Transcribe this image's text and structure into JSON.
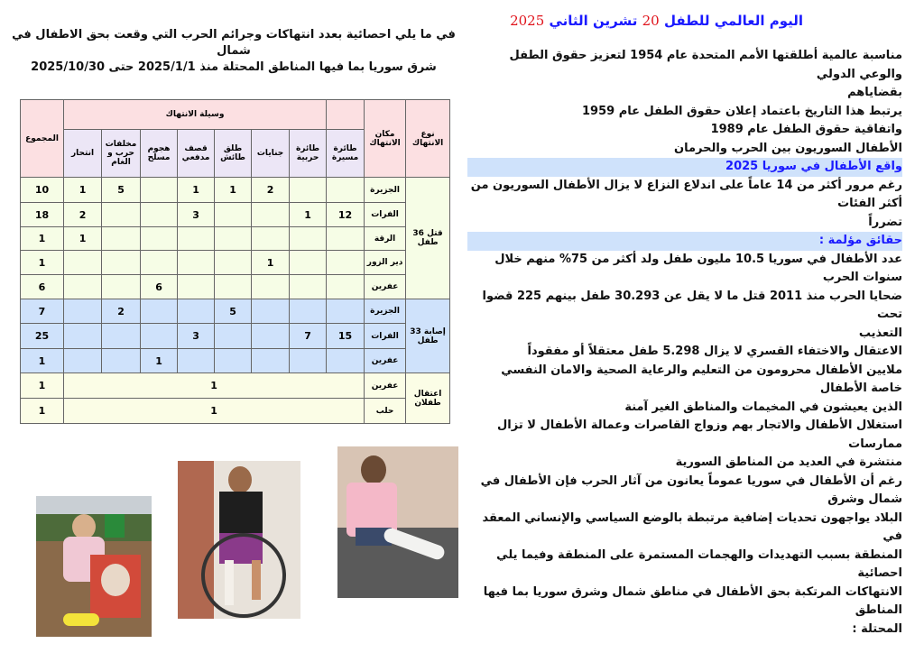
{
  "title": {
    "part1": "اليوم العالمي للطفل",
    "day": "20",
    "part2": "تشرين الثاني",
    "year": "2025"
  },
  "colors": {
    "title_blue": "#1a1aff",
    "title_red": "#e0131b",
    "header_pink": "#fce0e2",
    "killed_green": "#f6fde6",
    "injury_blue": "#cfe2fb",
    "detention_yellow": "#fbfde6"
  },
  "body_lines": [
    {
      "text": "مناسبة عالمية أطلقتها الأمم المتحدة عام 1954 لتعزيز حقوق الطفل والوعي الدولي",
      "color": "black"
    },
    {
      "text": "بقضاياهم",
      "color": "black"
    },
    {
      "text": "يرتبط هذا التاريخ باعتماد إعلان حقوق الطفل عام 1959",
      "color": "black"
    },
    {
      "text": "واتفاقية حقوق الطفل عام 1989",
      "color": "black"
    },
    {
      "text": "الأطفال السوريون بين الحرب والحرمان",
      "color": "black"
    },
    {
      "text": "واقع الأطفال في سوريا 2025",
      "color": "blue"
    },
    {
      "text": "رغم مرور أكثر من 14 عاماً على اندلاع النزاع لا يزال الأطفال السوريون من أكثر الفئات",
      "color": "black"
    },
    {
      "text": "تضرراً",
      "color": "black"
    },
    {
      "text": "حقائق مؤلمة :",
      "color": "blue"
    },
    {
      "text": "عدد الأطفال في سوريا 10.5 مليون طفل ولد أكثر من 75% منهم خلال سنوات الحرب",
      "color": "black"
    },
    {
      "text": "ضحايا الحرب منذ 2011 قتل ما لا يقل عن 30.293 طفل بينهم 225 قضوا تحت",
      "color": "black"
    },
    {
      "text": "التعذيب",
      "color": "black"
    },
    {
      "text": "الاعتقال والاختفاء القسري لا يزال 5.298 طفل معتقلاً أو مفقوداً",
      "color": "black"
    },
    {
      "text": "ملايين الأطفال محرومون من التعليم والرعاية الصحية والامان النفسي خاصة الأطفال",
      "color": "black"
    },
    {
      "text": "الذين يعيشون في المخيمات والمناطق الغير آمنة",
      "color": "black"
    },
    {
      "text": "استغلال الأطفال والاتجار بهم وزواج القاصرات وعمالة الأطفال لا تزال ممارسات",
      "color": "black"
    },
    {
      "text": "منتشرة في العديد من المناطق السورية",
      "color": "black"
    },
    {
      "text": "رغم أن الأطفال في سوريا عموماً يعانون من آثار الحرب فإن الأطفال في شمال وشرق",
      "color": "black"
    },
    {
      "text": "البلاد يواجهون تحديات إضافية مرتبطة بالوضع السياسي والإنساني المعقد في",
      "color": "black"
    },
    {
      "text": "المنطقة بسبب التهديدات والهجمات المستمرة على المنطقة وفيما يلي احصائية",
      "color": "black"
    },
    {
      "text": "الانتهاكات المرتكبة بحق الأطفال في مناطق شمال وشرق سوريا بما فيها المناطق",
      "color": "black"
    },
    {
      "text": "المحتلة :",
      "color": "black"
    }
  ],
  "stats_heading": {
    "line1": "في ما يلي احصائية بعدد انتهاكات وجرائم الحرب التي وقعت بحق الاطفال في شمال",
    "line2": "شرق سوريا بما فيها المناطق المحتلة منذ 2025/1/1 حتى 2025/10/30"
  },
  "table": {
    "headers": {
      "type": "نوع الانتهاك",
      "place": "مكان الانتهاك",
      "means": "وسيلة الانتهاك",
      "total": "المجموع",
      "means_cols": [
        "طائرة مسيرة",
        "طائرة حربية",
        "جنايات",
        "طلق طائش",
        "قصف مدفعي",
        "هجوم مسلح",
        "مخلفات حرب و الغام",
        "انتحار"
      ]
    },
    "groups": [
      {
        "label": "قتل 36 طفل",
        "style": "green",
        "rows": [
          {
            "place": "الجزيرة",
            "values": [
              "",
              "",
              "2",
              "1",
              "1",
              "",
              "5",
              "1"
            ],
            "total": "10"
          },
          {
            "place": "الفرات",
            "values": [
              "12",
              "1",
              "",
              "",
              "3",
              "",
              "",
              "2"
            ],
            "total": "18"
          },
          {
            "place": "الرقة",
            "values": [
              "",
              "",
              "",
              "",
              "",
              "",
              "",
              "1"
            ],
            "total": "1"
          },
          {
            "place": "دير الزور",
            "values": [
              "",
              "",
              "1",
              "",
              "",
              "",
              "",
              ""
            ],
            "total": "1"
          },
          {
            "place": "عفرين",
            "values": [
              "",
              "",
              "",
              "",
              "",
              "6",
              "",
              ""
            ],
            "total": "6"
          }
        ]
      },
      {
        "label": "إصابة 33 طفل",
        "style": "blue",
        "rows": [
          {
            "place": "الجزيرة",
            "values": [
              "",
              "",
              "",
              "5",
              "",
              "",
              "2",
              ""
            ],
            "total": "7"
          },
          {
            "place": "الفرات",
            "values": [
              "15",
              "7",
              "",
              "",
              "3",
              "",
              "",
              ""
            ],
            "total": "25"
          },
          {
            "place": "عفرين",
            "values": [
              "",
              "",
              "",
              "",
              "",
              "1",
              "",
              ""
            ],
            "total": "1"
          }
        ]
      },
      {
        "label": "اعتقال طفلان",
        "style": "yellow",
        "merged": true,
        "rows": [
          {
            "place": "عفرين",
            "merged_value": "1",
            "total": "1"
          },
          {
            "place": "حلب",
            "merged_value": "1",
            "total": "1"
          }
        ]
      }
    ]
  },
  "photos": [
    {
      "subject": "girl-at-grave-with-portrait"
    },
    {
      "subject": "girl-in-wheelchair"
    },
    {
      "subject": "girl-with-bandaged-leg"
    }
  ]
}
